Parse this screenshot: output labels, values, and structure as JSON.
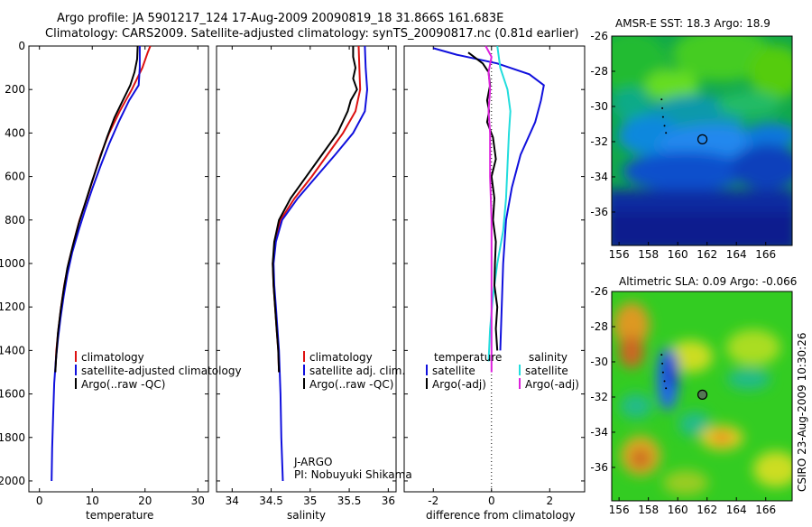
{
  "title_line1": "Argo profile: JA 5901217_124 17-Aug-2009 20090819_18 31.866S 161.683E",
  "title_line2": "Climatology: CARS2009. Satellite-adjusted climatology: synTS_20090817.nc (0.81d earlier)",
  "colors": {
    "climatology": "#dd1111",
    "satellite": "#1010dd",
    "argo": "#000000",
    "satellite_cyan": "#22dddd",
    "argo_adj": "#dd22dd"
  },
  "chart_data": [
    {
      "type": "line",
      "xlabel": "temperature",
      "xlim": [
        -2,
        32
      ],
      "ylim": [
        2050,
        0
      ],
      "xticks": [
        "0",
        "10",
        "20",
        "30"
      ],
      "yticks": [
        "0",
        "200",
        "400",
        "600",
        "800",
        "1000",
        "1200",
        "1400",
        "1600",
        "1800",
        "2000"
      ],
      "legend": [
        "climatology",
        "satellite-adjusted climatology",
        "Argo(..raw -QC)"
      ],
      "series": [
        {
          "name": "climatology",
          "color": "#dd1111",
          "points": [
            [
              21.0,
              0
            ],
            [
              20.5,
              30
            ],
            [
              19.5,
              100
            ],
            [
              17.5,
              200
            ],
            [
              15.2,
              300
            ],
            [
              13.2,
              400
            ],
            [
              11.6,
              500
            ],
            [
              10.3,
              600
            ],
            [
              9.0,
              700
            ],
            [
              7.6,
              800
            ],
            [
              6.5,
              900
            ],
            [
              5.5,
              1000
            ],
            [
              4.7,
              1100
            ],
            [
              4.1,
              1200
            ],
            [
              3.6,
              1300
            ],
            [
              3.2,
              1400
            ],
            [
              3.0,
              1500
            ]
          ]
        },
        {
          "name": "satellite-adjusted climatology",
          "color": "#1010dd",
          "points": [
            [
              19.0,
              0
            ],
            [
              19.0,
              100
            ],
            [
              18.8,
              180
            ],
            [
              17.0,
              250
            ],
            [
              15.0,
              350
            ],
            [
              13.2,
              450
            ],
            [
              11.6,
              550
            ],
            [
              10.1,
              650
            ],
            [
              8.7,
              750
            ],
            [
              7.4,
              850
            ],
            [
              6.2,
              950
            ],
            [
              5.3,
              1050
            ],
            [
              4.6,
              1150
            ],
            [
              4.0,
              1250
            ],
            [
              3.5,
              1350
            ],
            [
              3.1,
              1450
            ],
            [
              2.8,
              1550
            ],
            [
              2.6,
              1700
            ],
            [
              2.4,
              1850
            ],
            [
              2.3,
              2000
            ]
          ]
        },
        {
          "name": "Argo(..raw -QC)",
          "color": "#000000",
          "points": [
            [
              18.6,
              0
            ],
            [
              18.5,
              60
            ],
            [
              18.0,
              120
            ],
            [
              17.2,
              180
            ],
            [
              15.8,
              250
            ],
            [
              14.2,
              330
            ],
            [
              12.8,
              420
            ],
            [
              11.4,
              520
            ],
            [
              10.0,
              620
            ],
            [
              8.7,
              720
            ],
            [
              7.4,
              820
            ],
            [
              6.3,
              920
            ],
            [
              5.3,
              1020
            ],
            [
              4.6,
              1120
            ],
            [
              4.0,
              1220
            ],
            [
              3.5,
              1320
            ],
            [
              3.2,
              1420
            ],
            [
              3.0,
              1500
            ]
          ]
        }
      ]
    },
    {
      "type": "line",
      "xlabel": "salinity",
      "xlim": [
        33.8,
        36.1
      ],
      "ylim": [
        2050,
        0
      ],
      "xticks": [
        "34",
        "34.5",
        "35",
        "35.5",
        "36"
      ],
      "legend": [
        "climatology",
        "satellite adj. clim.",
        "Argo(..raw -QC)"
      ],
      "series": [
        {
          "name": "climatology",
          "color": "#dd1111",
          "points": [
            [
              35.62,
              0
            ],
            [
              35.63,
              100
            ],
            [
              35.64,
              200
            ],
            [
              35.58,
              300
            ],
            [
              35.42,
              400
            ],
            [
              35.22,
              500
            ],
            [
              35.02,
              600
            ],
            [
              34.8,
              700
            ],
            [
              34.62,
              800
            ],
            [
              34.55,
              900
            ],
            [
              34.52,
              1000
            ],
            [
              34.53,
              1100
            ],
            [
              34.55,
              1200
            ],
            [
              34.57,
              1300
            ],
            [
              34.59,
              1400
            ],
            [
              34.6,
              1500
            ]
          ]
        },
        {
          "name": "satellite adj. clim.",
          "color": "#1010dd",
          "points": [
            [
              35.7,
              0
            ],
            [
              35.71,
              100
            ],
            [
              35.73,
              200
            ],
            [
              35.7,
              300
            ],
            [
              35.55,
              400
            ],
            [
              35.32,
              500
            ],
            [
              35.08,
              600
            ],
            [
              34.84,
              700
            ],
            [
              34.64,
              800
            ],
            [
              34.56,
              900
            ],
            [
              34.53,
              1000
            ],
            [
              34.54,
              1100
            ],
            [
              34.56,
              1200
            ],
            [
              34.58,
              1300
            ],
            [
              34.6,
              1400
            ],
            [
              34.62,
              1600
            ],
            [
              34.63,
              1800
            ],
            [
              34.65,
              2000
            ]
          ]
        },
        {
          "name": "Argo(..raw -QC)",
          "color": "#000000",
          "points": [
            [
              35.55,
              0
            ],
            [
              35.55,
              50
            ],
            [
              35.58,
              100
            ],
            [
              35.55,
              150
            ],
            [
              35.6,
              200
            ],
            [
              35.52,
              250
            ],
            [
              35.48,
              300
            ],
            [
              35.35,
              400
            ],
            [
              35.15,
              500
            ],
            [
              34.95,
              600
            ],
            [
              34.75,
              700
            ],
            [
              34.6,
              800
            ],
            [
              34.54,
              900
            ],
            [
              34.52,
              1000
            ],
            [
              34.53,
              1100
            ],
            [
              34.55,
              1200
            ],
            [
              34.57,
              1300
            ],
            [
              34.59,
              1400
            ],
            [
              34.6,
              1500
            ]
          ]
        }
      ]
    },
    {
      "type": "line",
      "xlabel": "difference from climatology",
      "xlim": [
        -3,
        3.2
      ],
      "ylim": [
        2050,
        0
      ],
      "xticks": [
        "-2",
        "0",
        "2"
      ],
      "legend_temperature": [
        "temperature",
        "satellite",
        "Argo(-adj)"
      ],
      "legend_salinity": [
        "salinity",
        "satellite",
        "Argo(-adj)"
      ],
      "series": [
        {
          "name": "temperature satellite",
          "color": "#1010dd",
          "points": [
            [
              -2.0,
              10
            ],
            [
              -1.2,
              40
            ],
            [
              0.2,
              80
            ],
            [
              1.3,
              130
            ],
            [
              1.8,
              180
            ],
            [
              1.7,
              250
            ],
            [
              1.5,
              350
            ],
            [
              1.0,
              500
            ],
            [
              0.7,
              650
            ],
            [
              0.5,
              800
            ],
            [
              0.4,
              1000
            ],
            [
              0.35,
              1200
            ],
            [
              0.3,
              1400
            ]
          ]
        },
        {
          "name": "salinity satellite",
          "color": "#22dddd",
          "points": [
            [
              0.2,
              0
            ],
            [
              0.3,
              100
            ],
            [
              0.55,
              200
            ],
            [
              0.65,
              300
            ],
            [
              0.6,
              400
            ],
            [
              0.55,
              550
            ],
            [
              0.5,
              700
            ],
            [
              0.4,
              850
            ],
            [
              0.2,
              1000
            ],
            [
              0.05,
              1150
            ],
            [
              -0.05,
              1300
            ],
            [
              -0.1,
              1450
            ]
          ]
        },
        {
          "name": "temperature Argo(-adj)",
          "color": "#000000",
          "points": [
            [
              -0.8,
              30
            ],
            [
              -0.3,
              80
            ],
            [
              -0.1,
              120
            ],
            [
              -0.05,
              180
            ],
            [
              -0.15,
              250
            ],
            [
              -0.08,
              300
            ],
            [
              -0.15,
              350
            ],
            [
              0.05,
              420
            ],
            [
              0.15,
              520
            ],
            [
              0.0,
              600
            ],
            [
              0.1,
              700
            ],
            [
              0.05,
              800
            ],
            [
              0.15,
              900
            ],
            [
              0.12,
              1000
            ],
            [
              0.1,
              1100
            ],
            [
              0.2,
              1200
            ],
            [
              0.15,
              1300
            ],
            [
              0.2,
              1400
            ]
          ]
        },
        {
          "name": "salinity Argo(-adj)",
          "color": "#dd22dd",
          "points": [
            [
              -0.2,
              0
            ],
            [
              0.0,
              50
            ],
            [
              -0.1,
              120
            ],
            [
              -0.05,
              200
            ],
            [
              -0.1,
              300
            ],
            [
              -0.05,
              400
            ],
            [
              -0.05,
              600
            ],
            [
              0.0,
              800
            ],
            [
              0.0,
              1000
            ],
            [
              0.0,
              1200
            ],
            [
              0.0,
              1400
            ],
            [
              0.0,
              1500
            ]
          ]
        }
      ]
    },
    {
      "type": "heatmap",
      "title": "AMSR-E SST: 18.3 Argo: 18.9",
      "xticks": [
        "156",
        "158",
        "160",
        "162",
        "164",
        "166"
      ],
      "yticks": [
        "-26",
        "-28",
        "-30",
        "-32",
        "-34",
        "-36"
      ],
      "xlim": [
        155.5,
        167.8
      ],
      "ylim": [
        -37.9,
        -26
      ]
    },
    {
      "type": "heatmap",
      "title": "Altimetric SLA: 0.09 Argo: -0.066",
      "xticks": [
        "156",
        "158",
        "160",
        "162",
        "164",
        "166"
      ],
      "yticks": [
        "-26",
        "-28",
        "-30",
        "-32",
        "-34",
        "-36"
      ],
      "xlim": [
        155.5,
        167.8
      ],
      "ylim": [
        -37.9,
        -26
      ]
    }
  ],
  "credit": "CSIRO 23-Aug-2009 10:30:26",
  "annotation_line1": "J-ARGO",
  "annotation_line2": "PI: Nobuyuki Shikama",
  "argo_position": {
    "lon": 161.683,
    "lat": -31.866
  }
}
